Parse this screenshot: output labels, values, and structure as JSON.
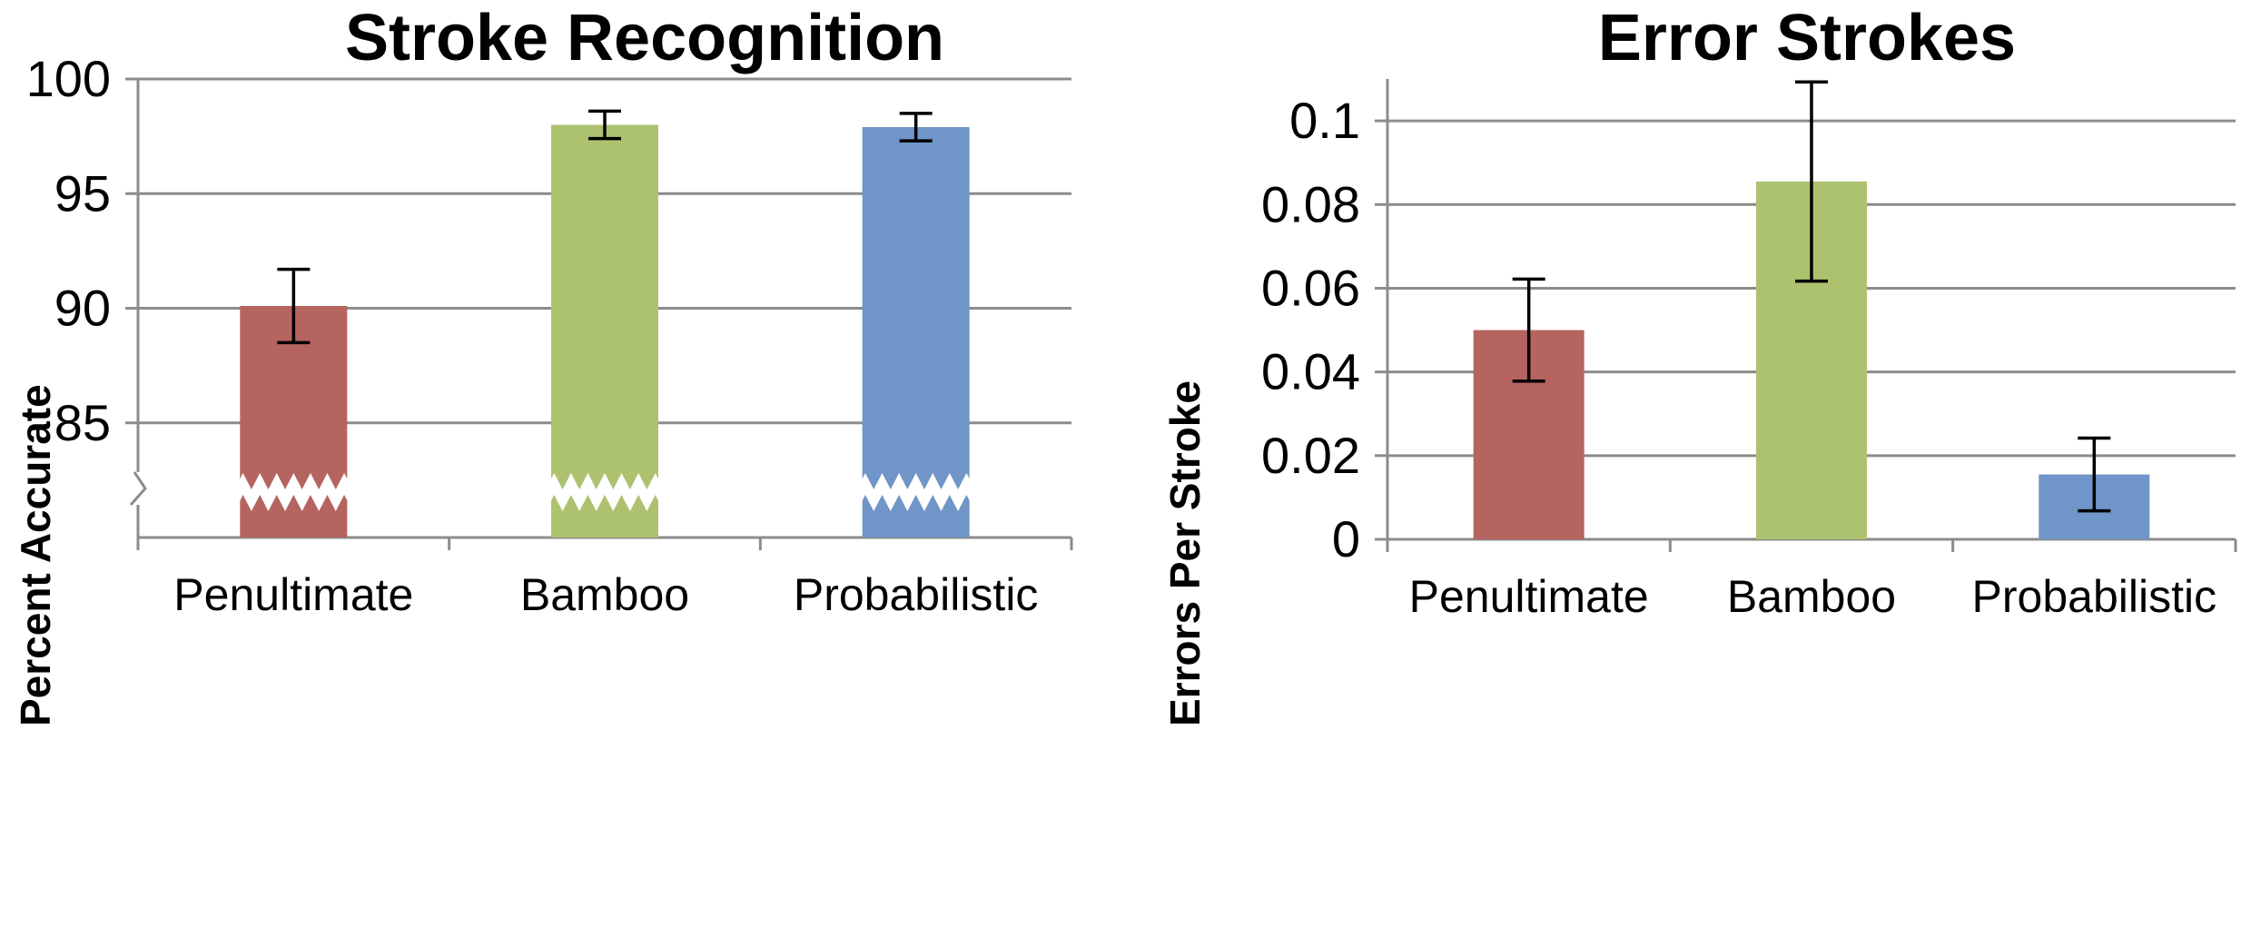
{
  "chart_data": [
    {
      "type": "bar",
      "title": "Stroke Recognition",
      "ylabel": "Percent Accurate",
      "xlabel": "",
      "categories": [
        "Penultimate",
        "Bamboo",
        "Probabilistic"
      ],
      "values": [
        90.1,
        98.0,
        97.9
      ],
      "error": [
        1.6,
        0.6,
        0.6
      ],
      "colors": [
        "#b5645f",
        "#adc26f",
        "#7095c8"
      ],
      "ylim": [
        80,
        100
      ],
      "yticks": [
        85,
        90,
        95,
        100
      ],
      "ytick_labels": [
        "85",
        "90",
        "95",
        "100"
      ],
      "axis_break": true,
      "grid": true,
      "legend": "none"
    },
    {
      "type": "bar",
      "title": "Error Strokes",
      "ylabel": "Errors Per Stroke",
      "xlabel": "",
      "categories": [
        "Penultimate",
        "Bamboo",
        "Probabilistic"
      ],
      "values": [
        0.05,
        0.0855,
        0.0155
      ],
      "error": [
        0.0122,
        0.0238,
        0.0087
      ],
      "colors": [
        "#b5645f",
        "#adc26f",
        "#7095c8"
      ],
      "ylim": [
        0,
        0.11
      ],
      "yticks": [
        0,
        0.02,
        0.04,
        0.06,
        0.08,
        0.1
      ],
      "ytick_labels": [
        "0",
        "0.02",
        "0.04",
        "0.06",
        "0.08",
        "0.1"
      ],
      "grid": true,
      "legend": "none"
    }
  ]
}
